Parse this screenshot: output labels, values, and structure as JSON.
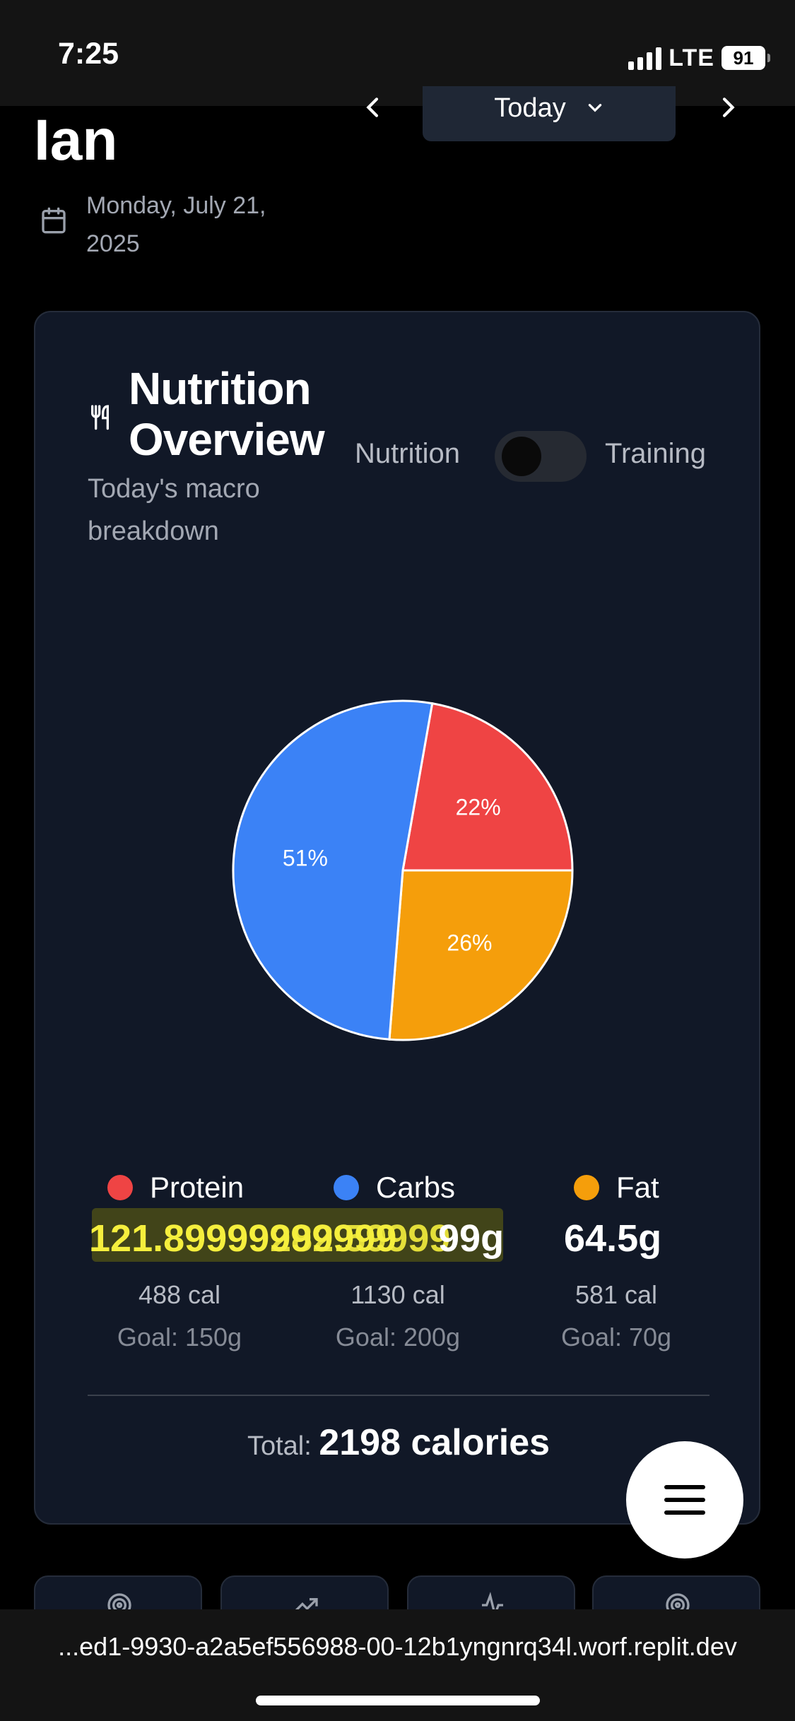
{
  "status_bar": {
    "time": "7:25",
    "network": "LTE",
    "battery": "91"
  },
  "header": {
    "user_name": "Ian",
    "date": "Monday, July 21, 2025",
    "day_selector": "Today",
    "icons": [
      "calendar-icon",
      "chevron-left-icon",
      "chevron-down-icon",
      "chevron-right-icon"
    ]
  },
  "card": {
    "title": "Nutrition Overview",
    "subtitle": "Today's macro breakdown",
    "toggle_left": "Nutrition",
    "toggle_right": "Training",
    "toggle_state": "Nutrition"
  },
  "chart_data": {
    "type": "pie",
    "categories": [
      "Protein",
      "Carbs",
      "Fat"
    ],
    "values": [
      22,
      51,
      26
    ],
    "labels": [
      "22%",
      "51%",
      "26%"
    ],
    "colors": [
      "#ef4444",
      "#3b82f6",
      "#f59e0b"
    ]
  },
  "macros": [
    {
      "name": "Protein",
      "grams": "121.89999999999",
      "calories": "488 cal",
      "goal": "Goal: 150g",
      "color": "#ef4444"
    },
    {
      "name": "Carbs",
      "grams": "282.59999",
      "calories": "1130 cal",
      "goal": "Goal: 200g",
      "color": "#3b82f6"
    },
    {
      "name": "Fat",
      "grams": "64.5g",
      "calories": "581 cal",
      "goal": "Goal: 70g",
      "color": "#f59e0b"
    }
  ],
  "carbs_tail": "99g",
  "total": {
    "label": "Total:",
    "value": "2198 calories"
  },
  "fab_icon": "menu-icon",
  "url": "...ed1-9930-a2a5ef556988-00-12b1yngnrq34l.worf.replit.dev"
}
